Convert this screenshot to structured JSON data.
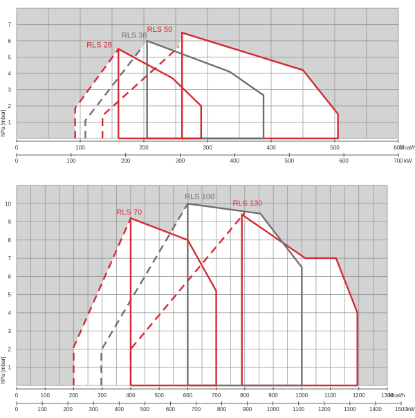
{
  "colors": {
    "background": "#d3d3d3",
    "grid": "#8c8c8c",
    "red": "#d42a32",
    "gray": "#6e6e6e",
    "fill": "#ffffff",
    "text": "#333333"
  },
  "chart_data": [
    {
      "type": "line",
      "ylabel": "hPa [mbar]",
      "xlabel": "Mcal/h",
      "x2label": "kW",
      "ylim": [
        0,
        8
      ],
      "xlim": [
        0,
        600
      ],
      "x2lim": [
        0,
        700
      ],
      "grid": true,
      "x_ticks": [
        "0",
        "100",
        "200",
        "300",
        "400",
        "500",
        "600"
      ],
      "x2_ticks": [
        "0",
        "100",
        "200",
        "300",
        "400",
        "500",
        "600",
        "700"
      ],
      "y_ticks": [
        "1",
        "2",
        "3",
        "4",
        "5",
        "6",
        "7"
      ],
      "series": [
        {
          "name": "RLS 50",
          "color": "red",
          "solid": [
            [
              260,
              0
            ],
            [
              260,
              6.5
            ],
            [
              450,
              4.2
            ],
            [
              505,
              1.5
            ],
            [
              505,
              0
            ],
            [
              260,
              0
            ]
          ],
          "dashed": [
            [
              135,
              0
            ],
            [
              135,
              1.4
            ],
            [
              240,
              5.1
            ],
            [
              255,
              5.65
            ]
          ]
        },
        {
          "name": "RLS 38",
          "color": "gray",
          "solid": [
            [
              205,
              0
            ],
            [
              205,
              6
            ],
            [
              335,
              4.1
            ],
            [
              388,
              2.65
            ],
            [
              388,
              0
            ],
            [
              205,
              0
            ]
          ],
          "dashed": [
            [
              108,
              0
            ],
            [
              108,
              1.1
            ],
            [
              198,
              5.65
            ]
          ]
        },
        {
          "name": "RLS 28",
          "color": "red",
          "solid": [
            [
              160,
              0
            ],
            [
              160,
              5.5
            ],
            [
              245,
              3.7
            ],
            [
              290,
              2
            ],
            [
              290,
              0
            ],
            [
              160,
              0
            ]
          ],
          "dashed": [
            [
              92,
              0
            ],
            [
              92,
              1.85
            ],
            [
              160,
              5.5
            ]
          ]
        }
      ],
      "labels": [
        {
          "text": "RLS 50",
          "x": 205,
          "y": 6.55,
          "color": "red"
        },
        {
          "text": "RLS 38",
          "x": 165,
          "y": 6.2,
          "color": "gray"
        },
        {
          "text": "RLS 28",
          "x": 110,
          "y": 5.6,
          "color": "red"
        }
      ]
    },
    {
      "type": "line",
      "ylabel": "hPa [mbar]",
      "xlabel": "Mcal/h",
      "x2label": "kW",
      "ylim": [
        0,
        11
      ],
      "xlim": [
        0,
        1300
      ],
      "x2lim": [
        0,
        1500
      ],
      "grid": true,
      "x_ticks": [
        "0",
        "100",
        "200",
        "300",
        "400",
        "500",
        "600",
        "700",
        "800",
        "900",
        "1000",
        "1100",
        "1200",
        "1300"
      ],
      "x2_ticks": [
        "0",
        "100",
        "200",
        "300",
        "400",
        "500",
        "600",
        "700",
        "800",
        "900",
        "1000",
        "1100",
        "1200",
        "1300",
        "1400",
        "1500"
      ],
      "y_ticks": [
        "1",
        "2",
        "3",
        "4",
        "5",
        "6",
        "7",
        "8",
        "9",
        "10"
      ],
      "series": [
        {
          "name": "RLS 130",
          "color": "red",
          "solid": [
            [
              790,
              0
            ],
            [
              790,
              9.4
            ],
            [
              1012,
              7
            ],
            [
              1120,
              7
            ],
            [
              1195,
              4
            ],
            [
              1195,
              0
            ],
            [
              790,
              0
            ]
          ],
          "dashed": [
            [
              400,
              0
            ],
            [
              400,
              2
            ],
            [
              800,
              9.5
            ]
          ]
        },
        {
          "name": "RLS 100",
          "color": "gray",
          "solid": [
            [
              600,
              0
            ],
            [
              600,
              10
            ],
            [
              855,
              9.45
            ],
            [
              1000,
              6.5
            ],
            [
              1000,
              0
            ],
            [
              600,
              0
            ]
          ],
          "dashed": [
            [
              297,
              0
            ],
            [
              297,
              1.95
            ],
            [
              600,
              10
            ]
          ]
        },
        {
          "name": "RLS 70",
          "color": "red",
          "solid": [
            [
              400,
              0
            ],
            [
              400,
              9.2
            ],
            [
              600,
              8
            ],
            [
              700,
              5.2
            ],
            [
              700,
              0
            ],
            [
              400,
              0
            ]
          ],
          "dashed": [
            [
              200,
              0
            ],
            [
              200,
              2.1
            ],
            [
              400,
              9.2
            ]
          ]
        }
      ],
      "labels": [
        {
          "text": "RLS 130",
          "x": 758,
          "y": 9.9,
          "color": "red"
        },
        {
          "text": "RLS 100",
          "x": 590,
          "y": 10.25,
          "color": "gray"
        },
        {
          "text": "RLS 70",
          "x": 350,
          "y": 9.4,
          "color": "red"
        }
      ]
    }
  ]
}
